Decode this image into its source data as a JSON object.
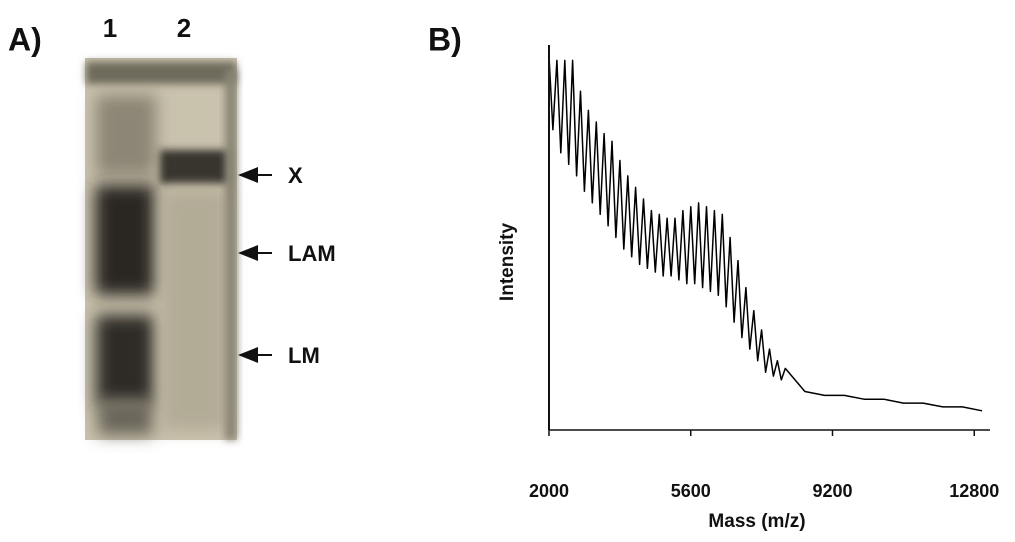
{
  "panel_a": {
    "label": "A)",
    "lanes": [
      "1",
      "2"
    ],
    "bands": [
      "X",
      "LAM",
      "LM"
    ]
  },
  "chart_data": {
    "type": "line",
    "panel_label": "B)",
    "xlabel": "Mass (m/z)",
    "ylabel": "Intensity",
    "xlim": [
      2000,
      13200
    ],
    "xticks": [
      2000,
      5600,
      9200,
      12800
    ],
    "ylim": [
      0,
      100
    ],
    "x": [
      2000,
      2100,
      2200,
      2300,
      2400,
      2500,
      2600,
      2700,
      2800,
      2900,
      3000,
      3100,
      3200,
      3300,
      3400,
      3500,
      3600,
      3700,
      3800,
      3900,
      4000,
      4100,
      4200,
      4300,
      4400,
      4500,
      4600,
      4700,
      4800,
      4900,
      5000,
      5100,
      5200,
      5300,
      5400,
      5500,
      5600,
      5700,
      5800,
      5900,
      6000,
      6100,
      6200,
      6300,
      6400,
      6500,
      6600,
      6700,
      6800,
      6900,
      7000,
      7100,
      7200,
      7300,
      7400,
      7500,
      7600,
      7700,
      7800,
      7900,
      8000,
      8500,
      9000,
      9500,
      10000,
      10500,
      11000,
      11500,
      12000,
      12500,
      13000
    ],
    "series": [
      {
        "color": "#000000",
        "values": [
          97,
          78,
          96,
          72,
          96,
          69,
          96,
          66,
          88,
          62,
          83,
          59,
          80,
          56,
          77,
          53,
          75,
          50,
          70,
          47,
          66,
          45,
          63,
          43,
          60,
          42,
          57,
          41,
          56,
          40,
          55,
          40,
          55,
          39,
          57,
          38,
          58,
          38,
          59,
          37,
          58,
          36,
          57,
          35,
          56,
          32,
          50,
          28,
          44,
          24,
          37,
          21,
          31,
          18,
          26,
          15,
          21,
          14,
          18,
          13,
          16,
          10,
          9,
          9,
          8,
          8,
          7,
          7,
          6,
          6,
          5
        ]
      }
    ]
  }
}
